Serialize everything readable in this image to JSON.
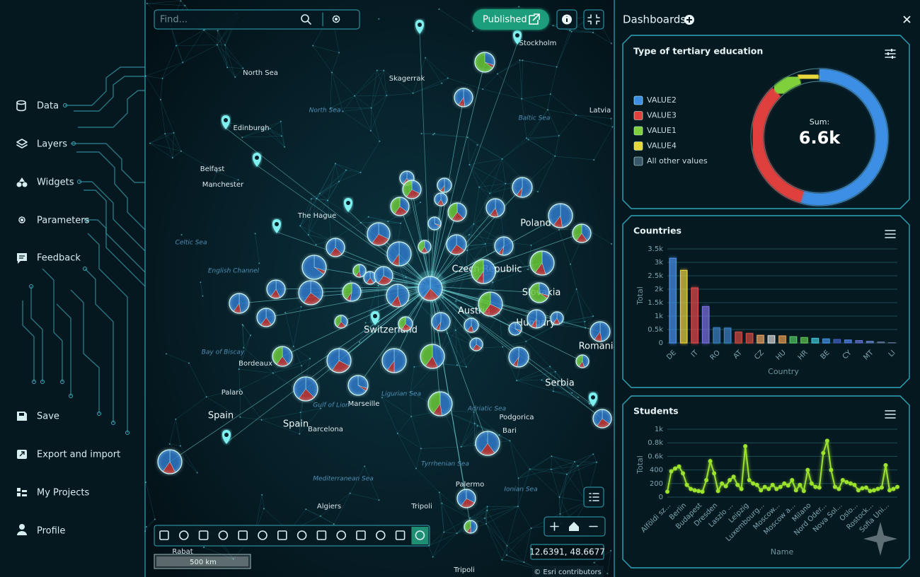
{
  "search": {
    "placeholder": "Find..."
  },
  "sidebar": {
    "items": [
      "Data",
      "Layers",
      "Widgets",
      "Parameters",
      "Feedback"
    ],
    "bottom_items": [
      "Save",
      "Export and import",
      "My Projects",
      "Profile"
    ]
  },
  "map": {
    "publish_button": "Published",
    "labels": [
      "North Sea",
      "Skagerrak",
      "Stockholm",
      "North Sea",
      "Baltic Sea",
      "Edinburgh",
      "Belfast",
      "Manchester",
      "The Hague",
      "Celtic Sea",
      "English Channel",
      "Poland",
      "Czech Republic",
      "Slovakia",
      "Austria",
      "Hungary",
      "Switzerland",
      "Romania",
      "Serbia",
      "Bay of Biscay",
      "Bordeaux",
      "Palaro",
      "Spain",
      "Spain",
      "Barcelona",
      "Marseille",
      "Gulf of Lion",
      "Ligurian Sea",
      "Adriatic Sea",
      "Bari",
      "Podgorica",
      "Tyrrhenian Sea",
      "Mediterranean Sea",
      "Palermo",
      "Ionian Sea",
      "Algiers",
      "Tripoli",
      "Tripoli",
      "Latvia",
      "Rabat"
    ],
    "scale_bar": "500 km",
    "coordinates": "12.6391, 48.6677",
    "attribution": "© Esri contributors"
  },
  "dashboards": {
    "title": "Dashboards",
    "widgets": [
      {
        "type": "pie",
        "title": "Type of tertiary education",
        "series": [
          {
            "name": "VALUE2",
            "color": "#3d8fe6",
            "value": 3600
          },
          {
            "name": "VALUE3",
            "color": "#e0403e",
            "value": 2200
          },
          {
            "name": "VALUE1",
            "color": "#7fd03a",
            "value": 450
          },
          {
            "name": "VALUE4",
            "color": "#e6d83a",
            "value": 330
          },
          {
            "name": "All other values",
            "color": "#3b5668",
            "value": 20
          }
        ],
        "center_label": "Sum:",
        "center_value": "6.6k"
      },
      {
        "type": "bar",
        "title": "Countries",
        "categories": [
          "DE",
          null,
          "IT",
          null,
          "RO",
          null,
          "AT",
          null,
          "CZ",
          null,
          "HU",
          null,
          "HR",
          null,
          "BE",
          null,
          "CY",
          null,
          "MT",
          null,
          "LI"
        ],
        "values": [
          3150,
          2700,
          2050,
          1350,
          560,
          550,
          400,
          350,
          280,
          270,
          260,
          230,
          200,
          170,
          150,
          130,
          110,
          90,
          60,
          40,
          20
        ],
        "colors": [
          "#4a8fe8",
          "#e8d040",
          "#e04848",
          "#7a6fe0",
          "#3a7fc0",
          "#3a7fc0",
          "#d04a40",
          "#d04a40",
          "#e8a060",
          "#d0d0d0",
          "#e09a50",
          "#50c060",
          "#60c050",
          "#40c0d0",
          "#4090e0",
          "#4060c0",
          "#5080e0",
          "#6070d0",
          "#6080c0",
          "#607090",
          "#607090"
        ],
        "ylim": [
          0,
          3500
        ],
        "yticks": [
          0,
          {
            "value": 500,
            "label": "0.5k"
          },
          {
            "value": 1000,
            "label": "1k"
          },
          {
            "value": 1500,
            "label": "1.5k"
          },
          {
            "value": 2000,
            "label": "2k"
          },
          {
            "value": 2500,
            "label": "2.5k"
          },
          {
            "value": 3000,
            "label": "3k"
          },
          {
            "value": 3500,
            "label": "3.5k"
          }
        ],
        "y_label": "Total",
        "x_label": "Country"
      },
      {
        "type": "line",
        "title": "Students",
        "color": "#9be22d",
        "categories": [
          "Alföldi sz...",
          null,
          null,
          null,
          "Berlin",
          null,
          null,
          null,
          "Budapest",
          null,
          null,
          null,
          "Dresden",
          null,
          null,
          null,
          "Laszlo ...",
          null,
          null,
          null,
          "Leipzig",
          null,
          null,
          null,
          "Luxembourg...",
          null,
          null,
          null,
          "Moscow...",
          null,
          null,
          null,
          "Moscow a...",
          null,
          null,
          null,
          "Milano",
          null,
          null,
          null,
          "Nord Oder...",
          null,
          null,
          null,
          "Nova Sol...",
          null,
          null,
          null,
          "Oslo...",
          null,
          null,
          null,
          "Rostock...",
          null,
          null,
          null,
          "Sofia Uni...",
          null,
          null,
          null
        ],
        "values": [
          80,
          380,
          420,
          450,
          350,
          180,
          120,
          100,
          90,
          80,
          250,
          530,
          350,
          90,
          200,
          160,
          250,
          300,
          180,
          120,
          750,
          250,
          200,
          180,
          100,
          150,
          120,
          180,
          120,
          150,
          200,
          170,
          250,
          100,
          180,
          90,
          400,
          200,
          150,
          140,
          650,
          830,
          400,
          150,
          120,
          250,
          220,
          200,
          180,
          100,
          130,
          140,
          90,
          100,
          120,
          140,
          470,
          100,
          120,
          150
        ],
        "ylim": [
          0,
          1000
        ],
        "yticks": [
          0,
          200,
          400,
          {
            "value": 600,
            "label": "0.6k"
          },
          {
            "value": 800,
            "label": "0.8k"
          },
          {
            "value": 1000,
            "label": "1k"
          }
        ],
        "y_label": "Total",
        "x_label": "Name"
      }
    ]
  }
}
